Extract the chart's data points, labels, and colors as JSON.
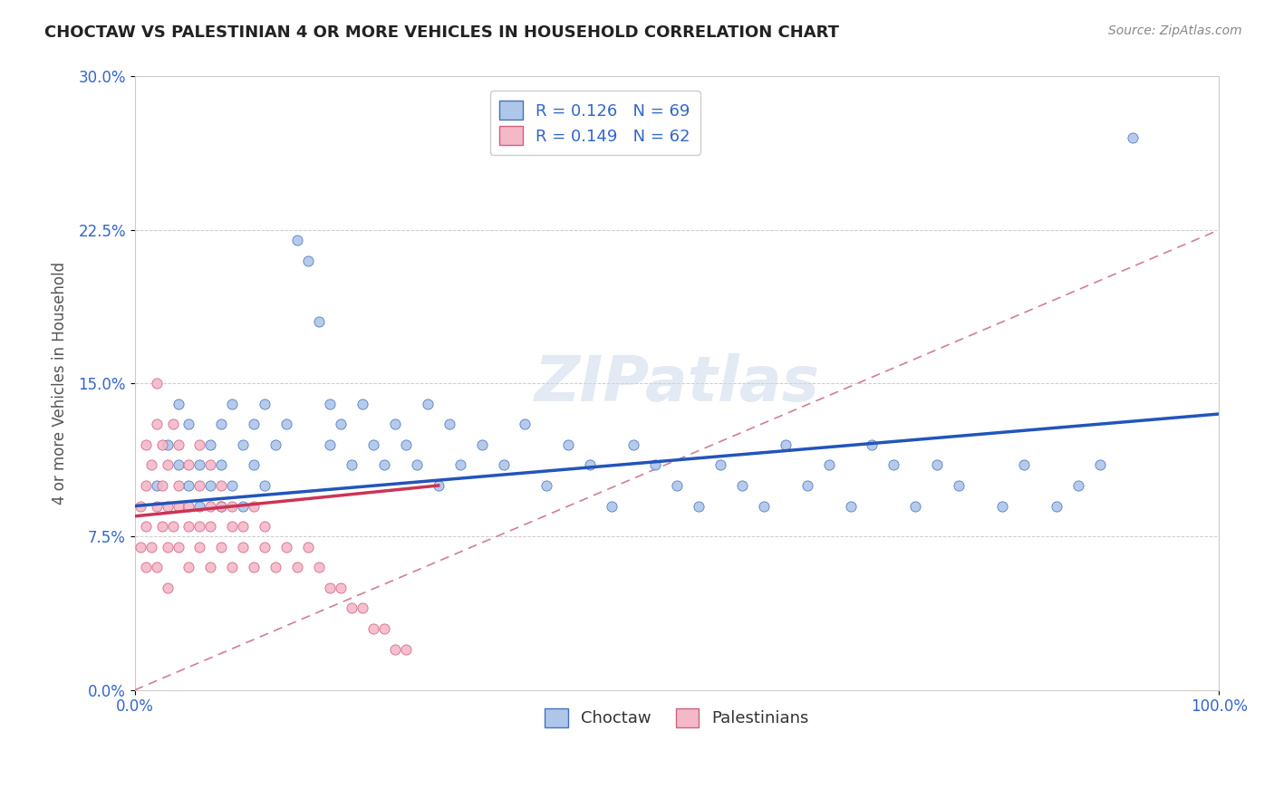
{
  "title": "CHOCTAW VS PALESTINIAN 4 OR MORE VEHICLES IN HOUSEHOLD CORRELATION CHART",
  "source_text": "Source: ZipAtlas.com",
  "ylabel": "4 or more Vehicles in Household",
  "legend_label1": "Choctaw",
  "legend_label2": "Palestinians",
  "r1": 0.126,
  "n1": 69,
  "r2": 0.149,
  "n2": 62,
  "xlim": [
    0,
    100
  ],
  "ylim": [
    0,
    30
  ],
  "ytick_labels": [
    "0.0%",
    "7.5%",
    "15.0%",
    "22.5%",
    "30.0%"
  ],
  "ytick_values": [
    0,
    7.5,
    15.0,
    22.5,
    30.0
  ],
  "watermark": "ZIPatlas",
  "color_choctaw_fill": "#aec6e8",
  "color_choctaw_edge": "#4472c4",
  "color_pal_fill": "#f4b8c8",
  "color_pal_edge": "#d06080",
  "color_line_choctaw": "#2255bb",
  "color_line_pal": "#cc3355",
  "color_refline": "#d08090",
  "choctaw_x": [
    2,
    3,
    4,
    4,
    5,
    5,
    6,
    6,
    7,
    7,
    8,
    8,
    8,
    9,
    9,
    10,
    10,
    11,
    11,
    12,
    12,
    13,
    14,
    15,
    16,
    17,
    18,
    18,
    19,
    20,
    21,
    22,
    23,
    24,
    25,
    26,
    27,
    28,
    29,
    30,
    32,
    34,
    36,
    38,
    40,
    42,
    44,
    46,
    48,
    50,
    52,
    54,
    56,
    58,
    60,
    62,
    64,
    66,
    68,
    70,
    72,
    74,
    76,
    80,
    82,
    85,
    87,
    89,
    92
  ],
  "choctaw_y": [
    10,
    12,
    14,
    11,
    13,
    10,
    11,
    9,
    12,
    10,
    13,
    11,
    9,
    14,
    10,
    12,
    9,
    13,
    11,
    14,
    10,
    12,
    13,
    22,
    21,
    18,
    14,
    12,
    13,
    11,
    14,
    12,
    11,
    13,
    12,
    11,
    14,
    10,
    13,
    11,
    12,
    11,
    13,
    10,
    12,
    11,
    9,
    12,
    11,
    10,
    9,
    11,
    10,
    9,
    12,
    10,
    11,
    9,
    12,
    11,
    9,
    11,
    10,
    9,
    11,
    9,
    10,
    11,
    27
  ],
  "pal_x": [
    0.5,
    0.5,
    1,
    1,
    1,
    1,
    1.5,
    1.5,
    2,
    2,
    2,
    2,
    2.5,
    2.5,
    2.5,
    3,
    3,
    3,
    3,
    3.5,
    3.5,
    4,
    4,
    4,
    4,
    5,
    5,
    5,
    5,
    6,
    6,
    6,
    6,
    7,
    7,
    7,
    7,
    8,
    8,
    8,
    9,
    9,
    9,
    10,
    10,
    11,
    11,
    12,
    12,
    13,
    14,
    15,
    16,
    17,
    18,
    19,
    20,
    21,
    22,
    23,
    24,
    25
  ],
  "pal_y": [
    9,
    7,
    10,
    8,
    6,
    12,
    11,
    7,
    13,
    9,
    6,
    15,
    10,
    8,
    12,
    9,
    7,
    11,
    5,
    8,
    13,
    10,
    7,
    9,
    12,
    8,
    11,
    6,
    9,
    10,
    7,
    8,
    12,
    9,
    6,
    11,
    8,
    7,
    10,
    9,
    8,
    6,
    9,
    8,
    7,
    9,
    6,
    8,
    7,
    6,
    7,
    6,
    7,
    6,
    5,
    5,
    4,
    4,
    3,
    3,
    2,
    2
  ],
  "choctaw_line_x0": 0,
  "choctaw_line_x1": 100,
  "choctaw_line_y0": 9.0,
  "choctaw_line_y1": 13.5,
  "pal_line_x0": 0,
  "pal_line_x1": 28,
  "pal_line_y0": 8.5,
  "pal_line_y1": 10.0,
  "ref_line_x0": 0,
  "ref_line_x1": 100,
  "ref_line_y0": 0,
  "ref_line_y1": 22.5
}
